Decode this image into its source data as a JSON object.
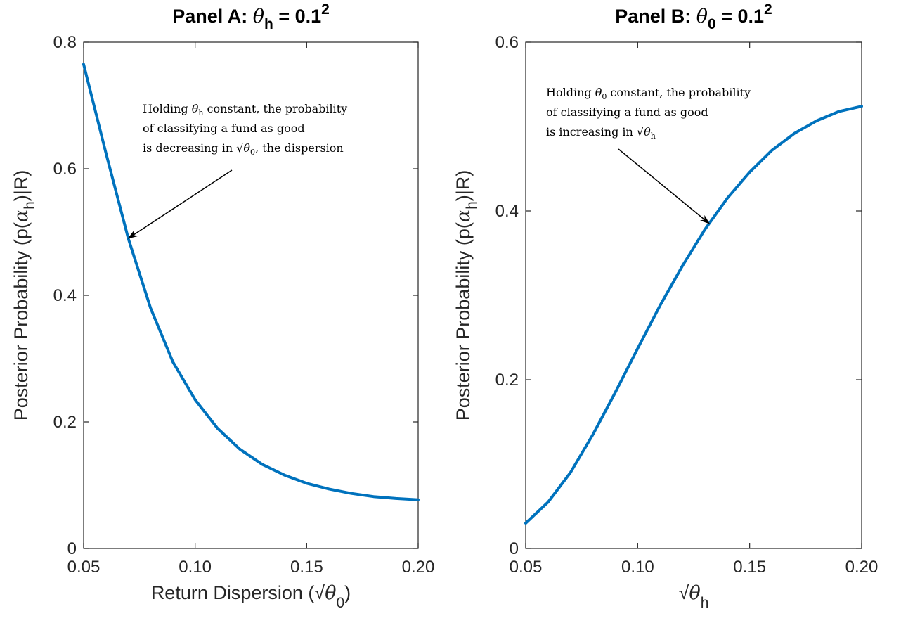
{
  "colors": {
    "series": "#0072bd",
    "axis": "#262626",
    "text": "#000000"
  },
  "chart_data": [
    {
      "type": "line",
      "title": {
        "prefix": "Panel A: ",
        "symbol": "θ",
        "sub": "h",
        "suffix": " = 0.1",
        "sup": "2"
      },
      "xlabel": {
        "prefix": "Return Dispersion (√",
        "symbol": "θ",
        "sub": "0",
        "suffix": ")"
      },
      "ylabel": {
        "prefix": "Posterior Probability (p(",
        "symbol": "α",
        "sub": "h",
        "suffix": ")|R)"
      },
      "xlim": [
        0.05,
        0.2
      ],
      "ylim": [
        0,
        0.8
      ],
      "xticks": [
        0.05,
        0.1,
        0.15,
        0.2
      ],
      "xtick_labels": [
        "0.05",
        "0.10",
        "0.15",
        "0.20"
      ],
      "yticks": [
        0,
        0.2,
        0.4,
        0.6,
        0.8
      ],
      "ytick_labels": [
        "0",
        "0.2",
        "0.4",
        "0.6",
        "0.8"
      ],
      "grid": false,
      "series": [
        {
          "x": [
            0.05,
            0.06,
            0.07,
            0.08,
            0.09,
            0.1,
            0.11,
            0.12,
            0.13,
            0.14,
            0.15,
            0.16,
            0.17,
            0.18,
            0.19,
            0.2
          ],
          "y": [
            0.765,
            0.625,
            0.49,
            0.38,
            0.295,
            0.235,
            0.19,
            0.157,
            0.133,
            0.116,
            0.103,
            0.094,
            0.087,
            0.082,
            0.079,
            0.077
          ]
        }
      ],
      "annotation": {
        "lines": [
          [
            {
              "t": "Holding "
            },
            {
              "t": "θ",
              "it": true
            },
            {
              "t": "h",
              "sub": true
            },
            {
              "t": " constant, the probability"
            }
          ],
          [
            {
              "t": "of classifying a fund as good"
            }
          ],
          [
            {
              "t": "is decreasing in √"
            },
            {
              "t": "θ",
              "it": true
            },
            {
              "t": "0",
              "sub": true
            },
            {
              "t": ", the dispersion"
            }
          ]
        ],
        "arrow_to": {
          "x": 0.07,
          "y": 0.49
        }
      }
    },
    {
      "type": "line",
      "title": {
        "prefix": "Panel B: ",
        "symbol": "θ",
        "sub": "0",
        "suffix": " = 0.1",
        "sup": "2"
      },
      "xlabel": {
        "prefix": "√",
        "symbol": "θ",
        "sub": "h",
        "suffix": ""
      },
      "ylabel": {
        "prefix": "Posterior Probability (p(",
        "symbol": "α",
        "sub": "h",
        "suffix": ")|R)"
      },
      "xlim": [
        0.05,
        0.2
      ],
      "ylim": [
        0,
        0.6
      ],
      "xticks": [
        0.05,
        0.1,
        0.15,
        0.2
      ],
      "xtick_labels": [
        "0.05",
        "0.10",
        "0.15",
        "0.20"
      ],
      "yticks": [
        0,
        0.2,
        0.4,
        0.6
      ],
      "ytick_labels": [
        "0",
        "0.2",
        "0.4",
        "0.6"
      ],
      "grid": false,
      "series": [
        {
          "x": [
            0.05,
            0.06,
            0.07,
            0.08,
            0.09,
            0.1,
            0.11,
            0.12,
            0.13,
            0.14,
            0.15,
            0.16,
            0.17,
            0.18,
            0.19,
            0.2
          ],
          "y": [
            0.03,
            0.055,
            0.09,
            0.135,
            0.185,
            0.237,
            0.288,
            0.335,
            0.378,
            0.415,
            0.446,
            0.472,
            0.492,
            0.507,
            0.518,
            0.524
          ]
        }
      ],
      "annotation": {
        "lines": [
          [
            {
              "t": "Holding "
            },
            {
              "t": "θ",
              "it": true
            },
            {
              "t": "0",
              "sub": true
            },
            {
              "t": " constant, the probability"
            }
          ],
          [
            {
              "t": "of classifying a fund as good"
            }
          ],
          [
            {
              "t": "is increasing in √"
            },
            {
              "t": "θ",
              "it": true
            },
            {
              "t": "h",
              "sub": true
            }
          ]
        ],
        "arrow_to": {
          "x": 0.132,
          "y": 0.385
        }
      }
    }
  ]
}
